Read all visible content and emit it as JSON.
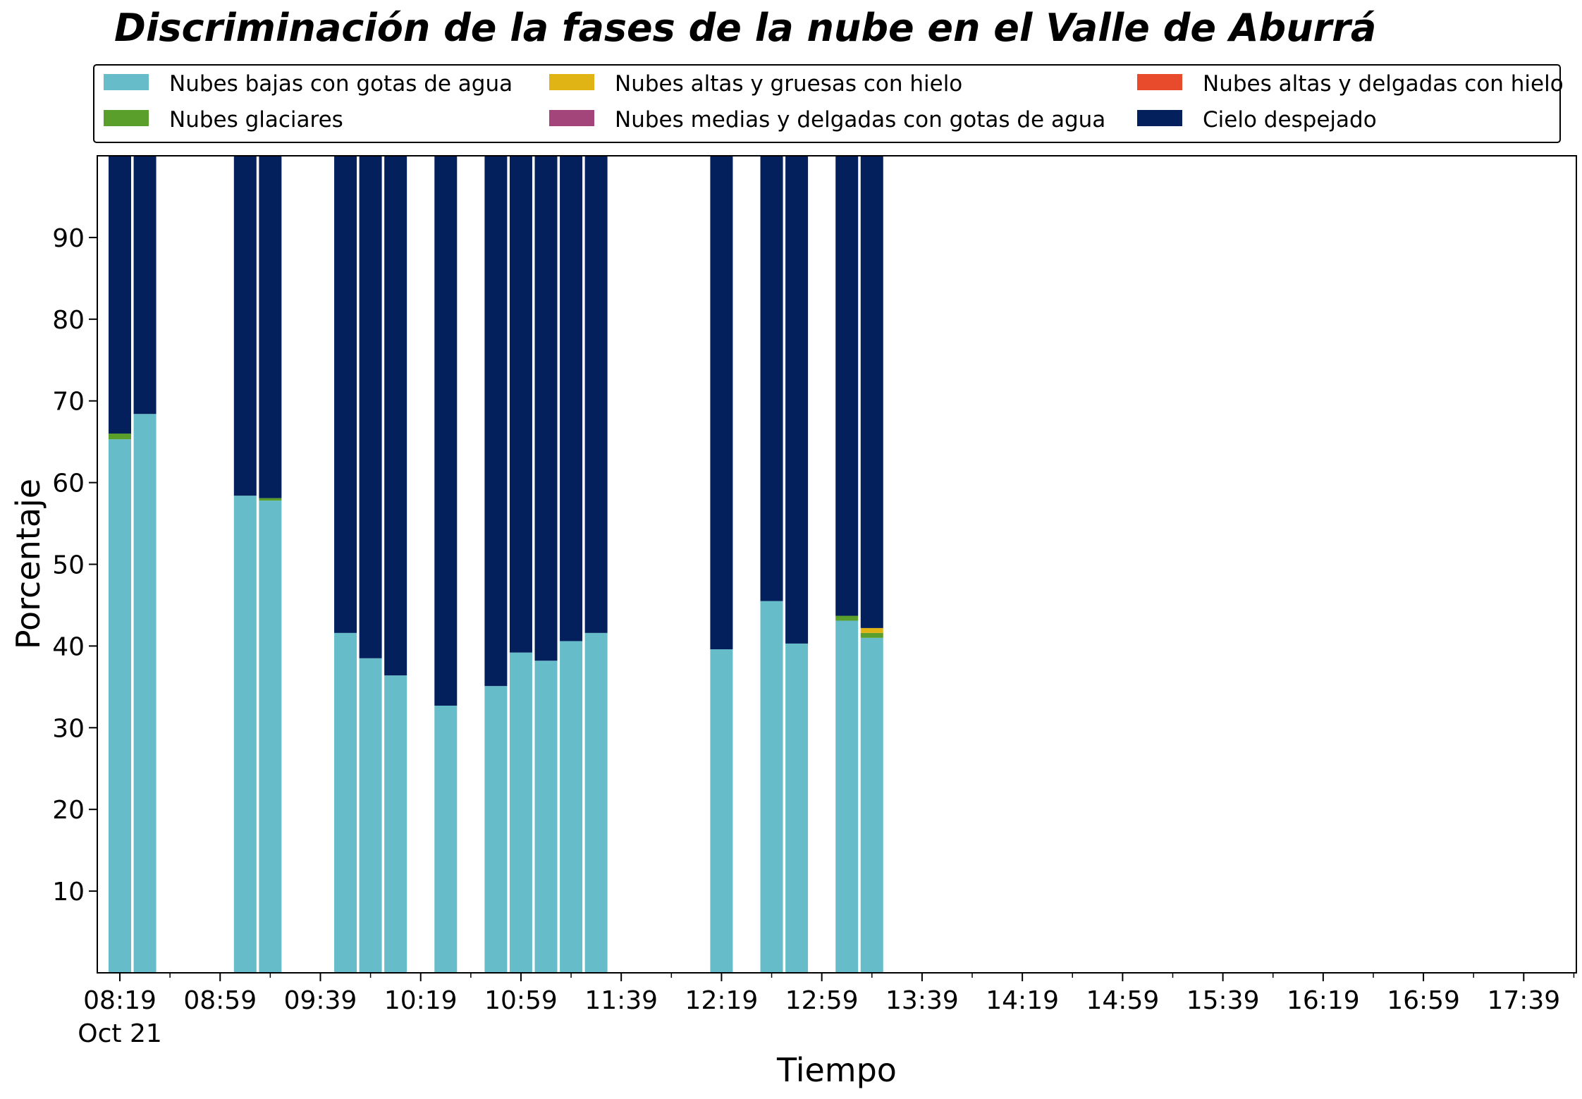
{
  "colors": {
    "low_water": "#66bdc9",
    "glacier": "#5a9e2b",
    "high_thick_ice": "#e0b414",
    "medium_thin_water": "#a3447a",
    "high_thin_ice": "#e84a2c",
    "clear_sky": "#03205c"
  },
  "chart_data": {
    "type": "bar",
    "stacked": true,
    "title": "Discriminación de la fases de la nube en el Valle de Aburrá",
    "xlabel": "Tiempo",
    "ylabel": "Porcentaje",
    "ylim": [
      0,
      100
    ],
    "yticks": [
      10,
      20,
      30,
      40,
      50,
      60,
      70,
      80,
      90
    ],
    "x_range_minutes": [
      490,
      1080
    ],
    "xticks": [
      {
        "label": "08:19",
        "minute": 499,
        "sublabel": "Oct 21"
      },
      {
        "label": "08:59",
        "minute": 539
      },
      {
        "label": "09:39",
        "minute": 579
      },
      {
        "label": "10:19",
        "minute": 619
      },
      {
        "label": "10:59",
        "minute": 659
      },
      {
        "label": "11:39",
        "minute": 699
      },
      {
        "label": "12:19",
        "minute": 739
      },
      {
        "label": "12:59",
        "minute": 779
      },
      {
        "label": "13:39",
        "minute": 819
      },
      {
        "label": "14:19",
        "minute": 859
      },
      {
        "label": "14:59",
        "minute": 899
      },
      {
        "label": "15:39",
        "minute": 939
      },
      {
        "label": "16:19",
        "minute": 979
      },
      {
        "label": "16:59",
        "minute": 1019
      },
      {
        "label": "17:39",
        "minute": 1059
      }
    ],
    "bar_width_minutes": 9,
    "x": [
      "08:19",
      "08:29",
      "09:09",
      "09:19",
      "09:49",
      "09:59",
      "10:09",
      "10:29",
      "10:49",
      "10:59",
      "11:09",
      "11:19",
      "11:29",
      "12:19",
      "12:39",
      "12:49",
      "13:09",
      "13:19"
    ],
    "x_minutes": [
      499,
      509,
      549,
      559,
      589,
      599,
      609,
      629,
      649,
      659,
      669,
      679,
      689,
      739,
      759,
      769,
      789,
      799
    ],
    "legend_placement": "top (above plot, 3 columns)",
    "series": [
      {
        "name": "Nubes bajas con gotas de agua",
        "color_key": "low_water",
        "values": [
          65.3,
          68.4,
          58.4,
          57.8,
          41.6,
          38.5,
          36.4,
          32.7,
          35.1,
          39.2,
          38.2,
          40.6,
          41.6,
          39.6,
          45.5,
          40.3,
          43.1,
          41.0
        ]
      },
      {
        "name": "Nubes glaciares",
        "color_key": "glacier",
        "values": [
          0.7,
          0,
          0,
          0.3,
          0,
          0,
          0,
          0,
          0,
          0,
          0,
          0,
          0,
          0,
          0,
          0,
          0.6,
          0.6
        ]
      },
      {
        "name": "Nubes altas y gruesas con hielo",
        "color_key": "high_thick_ice",
        "values": [
          0,
          0,
          0,
          0,
          0,
          0,
          0,
          0,
          0,
          0,
          0,
          0,
          0,
          0,
          0,
          0,
          0,
          0.6
        ]
      },
      {
        "name": "Nubes medias y delgadas con gotas de agua",
        "color_key": "medium_thin_water",
        "values": [
          0,
          0,
          0,
          0,
          0,
          0,
          0,
          0,
          0,
          0,
          0,
          0,
          0,
          0,
          0,
          0,
          0,
          0
        ]
      },
      {
        "name": "Nubes altas y delgadas con hielo",
        "color_key": "high_thin_ice",
        "values": [
          0,
          0,
          0,
          0,
          0,
          0,
          0,
          0,
          0,
          0,
          0,
          0,
          0,
          0,
          0,
          0,
          0,
          0
        ]
      },
      {
        "name": "Cielo despejado",
        "color_key": "clear_sky",
        "values": [
          34.0,
          31.6,
          41.6,
          41.9,
          58.4,
          61.5,
          63.6,
          67.3,
          64.9,
          60.8,
          61.8,
          59.4,
          58.4,
          60.4,
          54.5,
          59.7,
          56.3,
          57.8
        ]
      }
    ],
    "legend_order": [
      "Nubes bajas con gotas de agua",
      "Nubes altas y gruesas con hielo",
      "Nubes altas y delgadas con hielo",
      "Nubes glaciares",
      "Nubes medias y delgadas con gotas de agua",
      "Cielo despejado"
    ]
  }
}
